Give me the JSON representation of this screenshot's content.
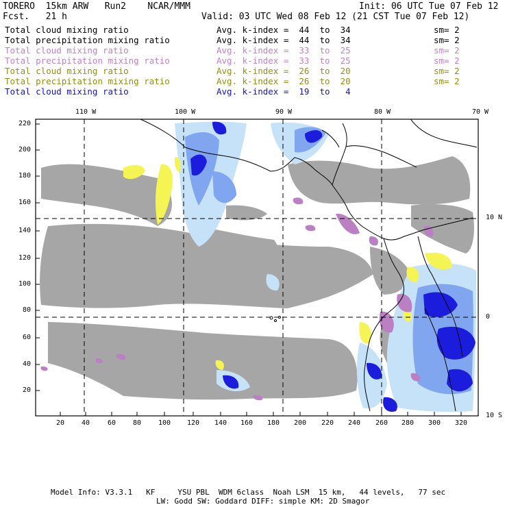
{
  "header": {
    "model": "TORERO  15km ARW   Run2    NCAR/MMM",
    "init": "Init: 06 UTC Tue 07 Feb 12",
    "fcst": "Fcst.   21 h",
    "valid": "Valid: 03 UTC Wed 08 Feb 12 (21 CST Tue 07 Feb 12)"
  },
  "legend": [
    {
      "field": "Total cloud mixing ratio",
      "stat": "Avg. k-index =  44  to  34",
      "sm": "sm= 2",
      "color": "#000000"
    },
    {
      "field": "Total precipitation mixing ratio",
      "stat": "Avg. k-index =  44  to  34",
      "sm": "sm= 2",
      "color": "#000000"
    },
    {
      "field": "Total cloud mixing ratio",
      "stat": "Avg. k-index =  33  to  25",
      "sm": "sm= 2",
      "color": "#c080c8"
    },
    {
      "field": "Total precipitation mixing ratio",
      "stat": "Avg. k-index =  33  to  25",
      "sm": "sm= 2",
      "color": "#c080c8"
    },
    {
      "field": "Total cloud mixing ratio",
      "stat": "Avg. k-index =  26  to  20",
      "sm": "sm= 2",
      "color": "#909010"
    },
    {
      "field": "Total precipitation mixing ratio",
      "stat": "Avg. k-index =  26  to  20",
      "sm": "sm= 2",
      "color": "#909010"
    },
    {
      "field": "Total cloud mixing ratio",
      "stat": "Avg. k-index =  19  to   4",
      "sm": "",
      "color": "#1010e0"
    }
  ],
  "map": {
    "lon_labels": [
      "110 W",
      "100 W",
      "90 W",
      "80 W",
      "70 W"
    ],
    "lat_labels": [
      "10 N",
      "0",
      "10 S"
    ],
    "y_ticks": [
      "220",
      "200",
      "180",
      "160",
      "140",
      "120",
      "100",
      "80",
      "60",
      "40",
      "20"
    ],
    "x_ticks": [
      "20",
      "40",
      "60",
      "80",
      "100",
      "120",
      "140",
      "160",
      "180",
      "200",
      "220",
      "240",
      "260",
      "280",
      "300",
      "320"
    ],
    "colors": {
      "gray": "#a6a6a6",
      "purple": "#bb7fc4",
      "yellow": "#f4f455",
      "light_blue": "#c6e2f8",
      "mid_blue": "#7fa6ee",
      "blue": "#1c1cdc"
    }
  },
  "footer": {
    "line1": "Model Info: V3.3.1   KF     YSU PBL  WDM 6class  Noah LSM  15 km,   44 levels,   77 sec",
    "line2": "LW: Godd SW: Goddard DIFF: simple KM: 2D Smagor"
  }
}
